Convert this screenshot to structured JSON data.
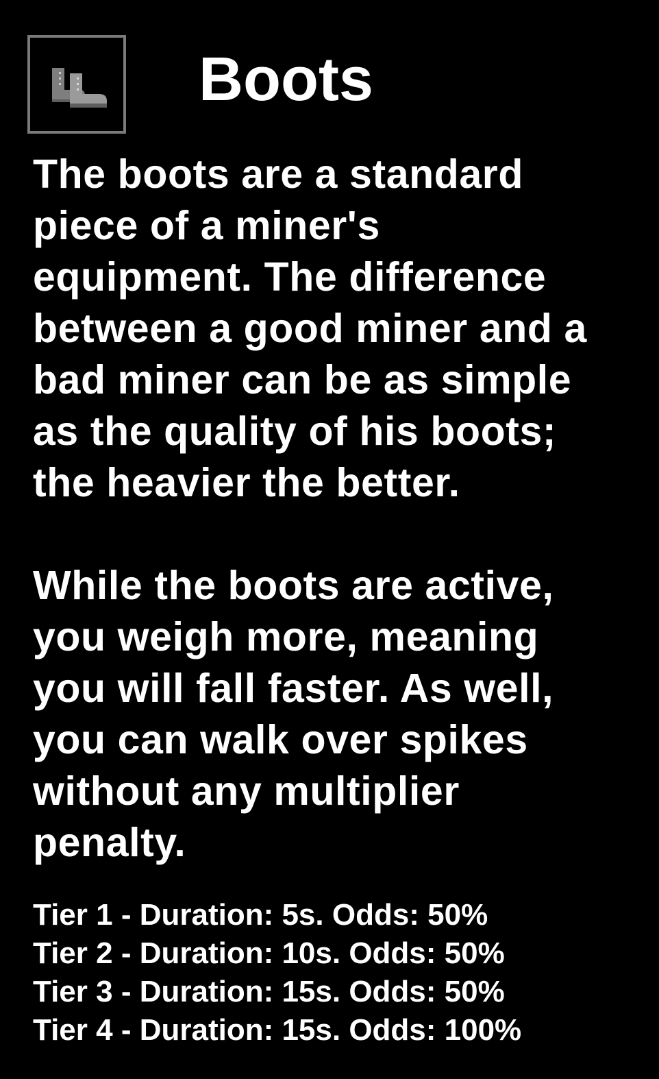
{
  "item": {
    "icon": "boots-icon",
    "title": "Boots"
  },
  "description": {
    "paragraph1_lines": [
      "The boots are a standard",
      "piece of a miner's",
      "equipment. The difference",
      "between a good miner and a",
      "bad miner can be as simple",
      "as the quality of his boots;",
      "the heavier the better."
    ],
    "paragraph2_lines": [
      "While the boots are active,",
      "you weigh more, meaning",
      "you will fall faster. As well,",
      "you can walk over spikes",
      "without any multiplier",
      "penalty."
    ]
  },
  "tiers": [
    "Tier 1 - Duration: 5s. Odds: 50%",
    "Tier 2 - Duration: 10s. Odds: 50%",
    "Tier 3 - Duration: 15s. Odds: 50%",
    "Tier 4 - Duration: 15s. Odds: 100%"
  ],
  "colors": {
    "background": "#000000",
    "text": "#ffffff",
    "frame": "#7a7a7a",
    "icon": "#8a8a8a"
  }
}
